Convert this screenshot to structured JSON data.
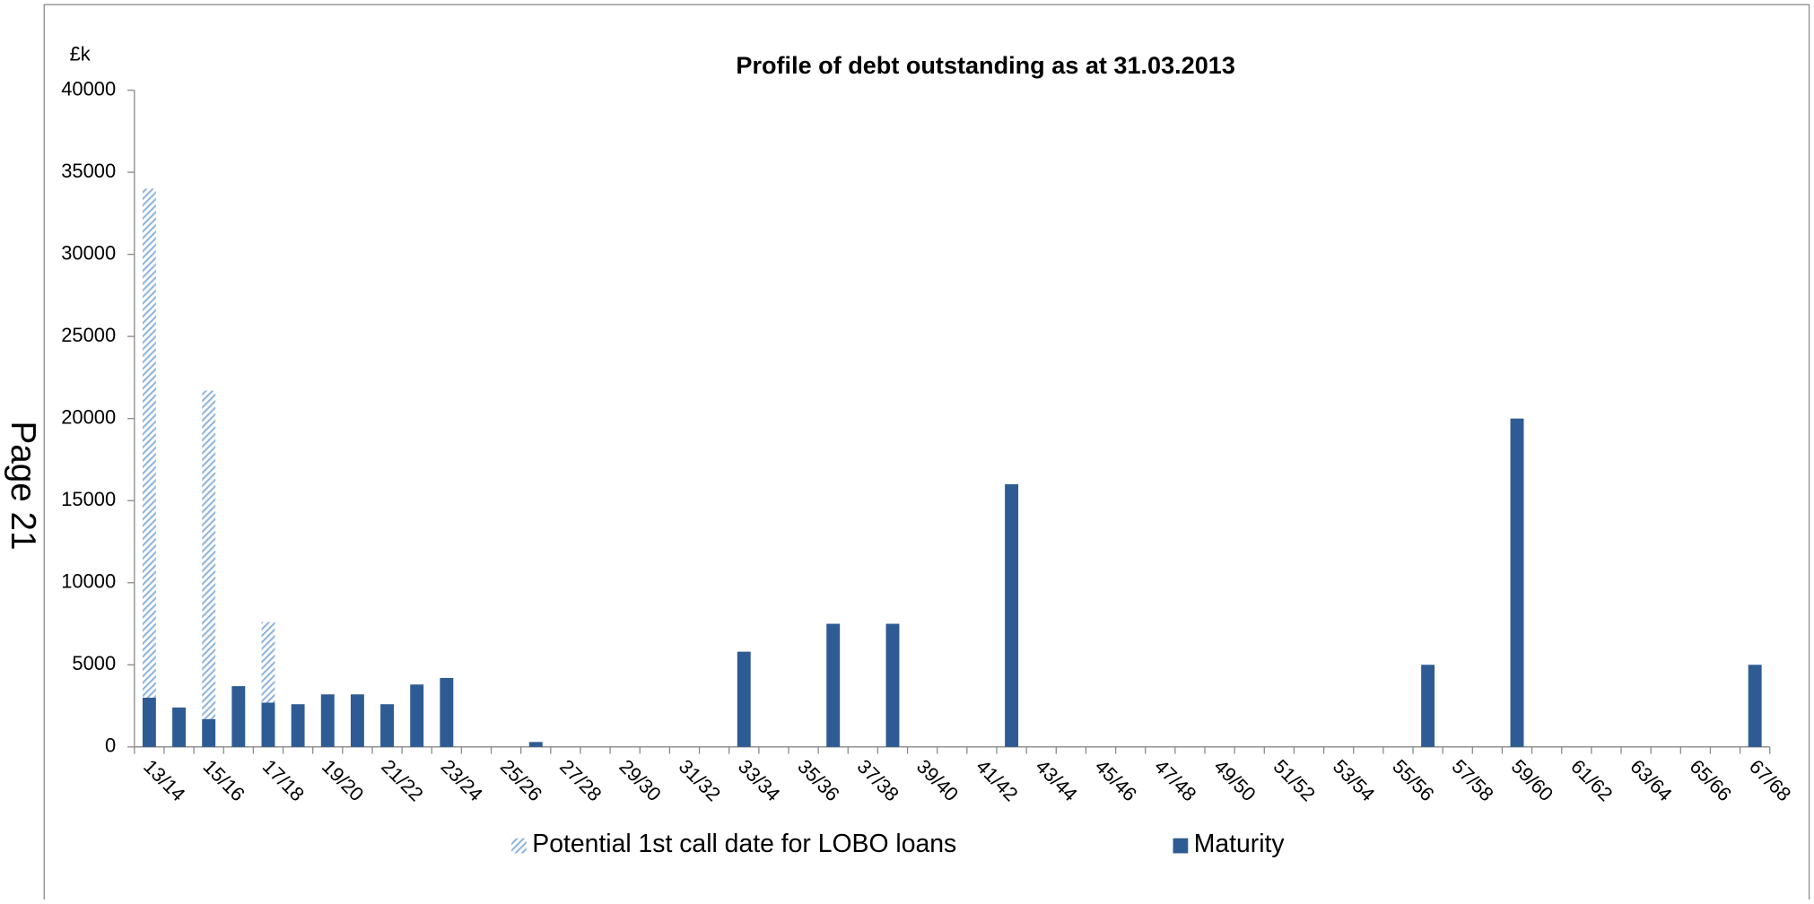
{
  "page": {
    "side_note": "Page 21"
  },
  "chart_data": {
    "type": "bar",
    "stacked": true,
    "title": "Profile of debt outstanding as at 31.03.2013",
    "y_unit": "£k",
    "categories": [
      "13/14",
      null,
      "15/16",
      null,
      "17/18",
      null,
      "19/20",
      null,
      "21/22",
      null,
      "23/24",
      null,
      "25/26",
      null,
      "27/28",
      null,
      "29/30",
      null,
      "31/32",
      null,
      "33/34",
      null,
      "35/36",
      null,
      "37/38",
      null,
      "39/40",
      null,
      "41/42",
      null,
      "43/44",
      null,
      "45/46",
      null,
      "47/48",
      null,
      "49/50",
      null,
      "51/52",
      null,
      "53/54",
      null,
      "55/56",
      null,
      "57/58",
      null,
      "59/60",
      null,
      "61/62",
      null,
      "63/64",
      null,
      "65/66",
      null,
      "67/68"
    ],
    "series": [
      {
        "name": "Maturity",
        "color": "#2e5b93",
        "values": [
          3000,
          2400,
          1700,
          3700,
          2700,
          2600,
          3200,
          3200,
          2600,
          3800,
          4200,
          0,
          0,
          300,
          0,
          0,
          0,
          0,
          0,
          0,
          5800,
          0,
          0,
          7500,
          0,
          7500,
          0,
          0,
          0,
          16000,
          0,
          0,
          0,
          0,
          0,
          0,
          0,
          0,
          0,
          0,
          0,
          0,
          0,
          5000,
          0,
          0,
          20000,
          0,
          0,
          0,
          0,
          0,
          0,
          0,
          5000
        ]
      },
      {
        "name": "Potential 1st call date for LOBO loans",
        "color": "#8fb4dc",
        "pattern": "hatch",
        "values": [
          31000,
          0,
          20000,
          0,
          4900,
          0,
          0,
          0,
          0,
          0,
          0,
          0,
          0,
          0,
          0,
          0,
          0,
          0,
          0,
          0,
          0,
          0,
          0,
          0,
          0,
          0,
          0,
          0,
          0,
          0,
          0,
          0,
          0,
          0,
          0,
          0,
          0,
          0,
          0,
          0,
          0,
          0,
          0,
          0,
          0,
          0,
          0,
          0,
          0,
          0,
          0,
          0,
          0,
          0,
          0
        ]
      }
    ],
    "ylim": [
      0,
      40000
    ],
    "yticks": [
      0,
      5000,
      10000,
      15000,
      20000,
      25000,
      30000,
      35000,
      40000
    ],
    "grid": false,
    "legend": "bottom"
  }
}
